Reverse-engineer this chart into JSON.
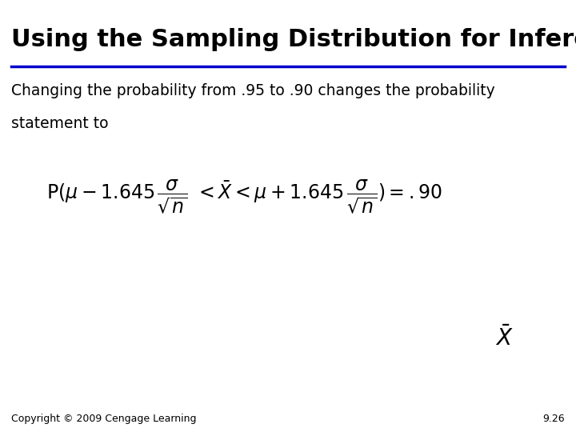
{
  "title": "Using the Sampling Distribution for Inference",
  "title_fontsize": 22,
  "title_color": "#000000",
  "underline_color": "#0000CC",
  "subtitle_line1": "Changing the probability from .95 to .90 changes the probability",
  "subtitle_line2": "statement to",
  "subtitle_fontsize": 13.5,
  "formula_fontsize": 17,
  "xbar_fontsize": 20,
  "copyright": "Copyright © 2009 Cengage Learning",
  "copyright_fontsize": 9,
  "page_number": "9.26",
  "page_fontsize": 9,
  "bg_color": "#ffffff"
}
